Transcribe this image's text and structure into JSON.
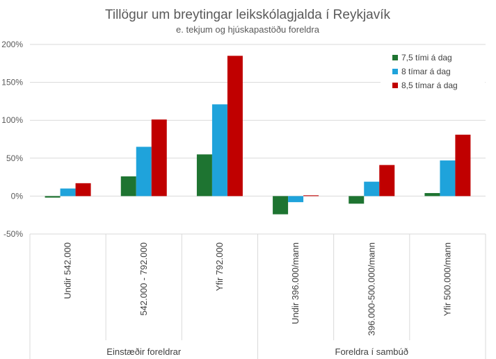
{
  "chart_data": {
    "type": "bar",
    "title": "Tillögur um breytingar leikskólagjalda í Reykjavík",
    "subtitle": "e. tekjum og hjúskapastöðu foreldra",
    "categories": [
      "Undir 542.000",
      "542.000 - 792.000",
      "Yfir 792.000",
      "Undir 396.000/mann",
      "396.000-500.000/mann",
      "Yfir 500.000/mann"
    ],
    "groups": [
      {
        "label": "Einstæðir foreldrar",
        "count": 3
      },
      {
        "label": "Foreldra í sambúð",
        "count": 3
      }
    ],
    "series": [
      {
        "name": "7,5 tími á dag",
        "color": "#1e7431",
        "values": [
          -2,
          26,
          55,
          -24,
          -10,
          4
        ]
      },
      {
        "name": "8 tímar á dag",
        "color": "#1fa3db",
        "values": [
          10,
          65,
          121,
          -8,
          19,
          47
        ]
      },
      {
        "name": "8,5 tímar á dag",
        "color": "#c00000",
        "values": [
          17,
          101,
          185,
          1,
          41,
          81
        ]
      }
    ],
    "ylim": [
      -50,
      200
    ],
    "yticks": [
      -50,
      0,
      50,
      100,
      150,
      200
    ],
    "ytick_labels": [
      "-50%",
      "0%",
      "50%",
      "100%",
      "150%",
      "200%"
    ],
    "grid": true,
    "legend_position": "top-right"
  }
}
